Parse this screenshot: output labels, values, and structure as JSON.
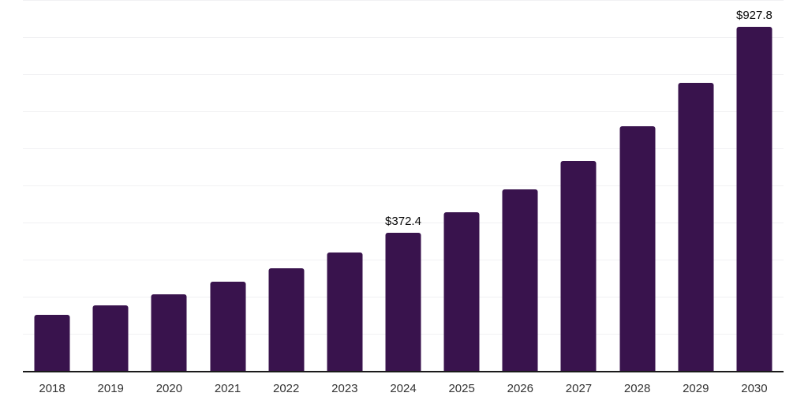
{
  "chart_data": {
    "type": "bar",
    "title": "",
    "xlabel": "",
    "ylabel": "",
    "categories": [
      "2018",
      "2019",
      "2020",
      "2021",
      "2022",
      "2023",
      "2024",
      "2025",
      "2026",
      "2027",
      "2028",
      "2029",
      "2030"
    ],
    "values": [
      152,
      177,
      207,
      241,
      276,
      320,
      372.4,
      427,
      490,
      567,
      659,
      777,
      927.8
    ],
    "value_labels": [
      {
        "category": "2024",
        "text": "$372.4"
      },
      {
        "category": "2030",
        "text": "$927.8"
      }
    ],
    "ylim": [
      0,
      1000
    ],
    "gridline_interval": 100,
    "grid": true,
    "legend": "none",
    "bar_color": "#39134D",
    "gridline_color": "#f1f1f3",
    "axis_line_color": "#1a1a1a",
    "tick_label_color": "#333333",
    "background_color": "#ffffff"
  }
}
